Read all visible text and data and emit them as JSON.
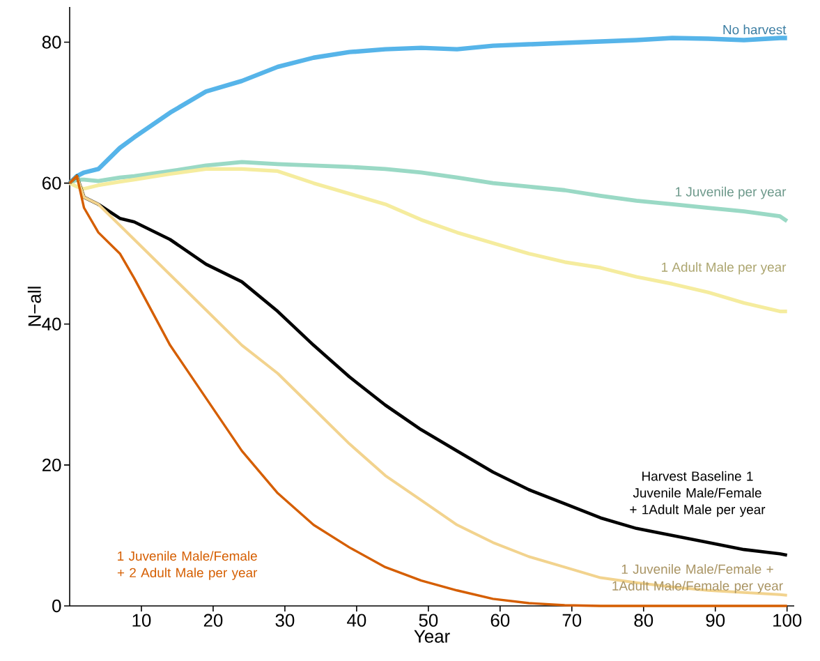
{
  "chart_data": {
    "type": "line",
    "xlabel": "Year",
    "ylabel": "N−all",
    "x": [
      0,
      1,
      2,
      4,
      7,
      9,
      14,
      19,
      24,
      29,
      34,
      39,
      44,
      49,
      54,
      59,
      64,
      69,
      74,
      79,
      84,
      89,
      94,
      99,
      100
    ],
    "series": [
      {
        "name": "No harvest",
        "color": "#56b4e9",
        "values": [
          60,
          61,
          61.5,
          62,
          65,
          66.5,
          70,
          73,
          74.5,
          76.5,
          77.8,
          78.6,
          79,
          79.2,
          79,
          79.5,
          79.7,
          79.9,
          80.1,
          80.3,
          80.6,
          80.5,
          80.3,
          80.6,
          80.6
        ]
      },
      {
        "name": "1 Juvenile per year",
        "color": "#9ad9c5",
        "values": [
          60,
          60.5,
          60.5,
          60.3,
          60.8,
          61,
          61.7,
          62.5,
          63,
          62.7,
          62.5,
          62.3,
          62,
          61.5,
          60.8,
          60,
          59.5,
          59,
          58.2,
          57.5,
          57,
          56.5,
          56,
          55.3,
          54.6
        ]
      },
      {
        "name": "1 Adult Male per year",
        "color": "#f5ec9e",
        "values": [
          60,
          59.5,
          59.2,
          59.7,
          60.2,
          60.5,
          61.3,
          62,
          62,
          61.7,
          60,
          58.5,
          57,
          54.8,
          53,
          51.5,
          50,
          48.8,
          48,
          46.7,
          45.7,
          44.5,
          43,
          41.8,
          41.8
        ]
      },
      {
        "name": "Harvest Baseline 1 Juvenile Male/Female + 1Adult Male per year",
        "color": "#000000",
        "values": [
          60,
          61,
          58,
          57,
          55,
          54.5,
          52,
          48.5,
          46,
          41.8,
          37,
          32.5,
          28.5,
          25,
          22,
          19,
          16.5,
          14.5,
          12.5,
          11,
          10,
          9,
          8,
          7.4,
          7.2
        ]
      },
      {
        "name": "1 Juvenile Male/Female + 1Adult Male/Female per year",
        "color": "#f2d38e",
        "values": [
          60,
          61,
          58,
          57,
          54,
          52,
          47,
          42,
          37,
          33,
          28,
          23,
          18.5,
          15,
          11.5,
          9,
          7,
          5.5,
          4,
          3.3,
          2.7,
          2.2,
          1.9,
          1.6,
          1.5
        ]
      },
      {
        "name": "1 Juvenile Male/Female + 2 Adult Male per year",
        "color": "#d55e00",
        "values": [
          60,
          61,
          56.5,
          53,
          50,
          46.5,
          37,
          29.5,
          22,
          16,
          11.5,
          8.3,
          5.5,
          3.6,
          2.2,
          1.0,
          0.4,
          0.1,
          0,
          0,
          0,
          0,
          0,
          0,
          0
        ]
      }
    ],
    "xlim": [
      0,
      101
    ],
    "ylim": [
      0,
      85
    ],
    "xticks": [
      10,
      20,
      30,
      40,
      50,
      60,
      70,
      80,
      90,
      100
    ],
    "yticks": [
      0,
      20,
      40,
      60,
      80
    ],
    "grid": false,
    "legend": false,
    "marker": "none",
    "line_style": "solid"
  }
}
